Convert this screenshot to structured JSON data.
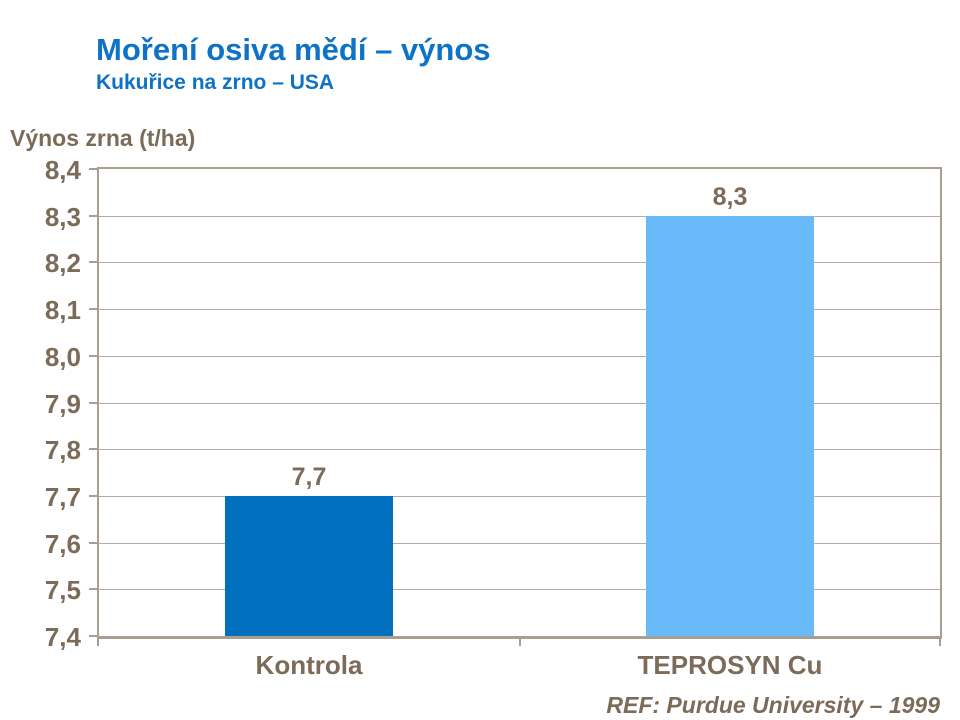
{
  "header": {
    "title": "Moření osiva mědí – výnos",
    "subtitle": "Kukuřice na zrno – USA"
  },
  "footer": {
    "reference": "REF: Purdue University – 1999"
  },
  "colors": {
    "title_blue": "#0e72c6",
    "text_brown": "#7c6b58",
    "axis_line": "#a89e92",
    "gridline": "#b5ab9f",
    "bar_kontrola": "#0070be",
    "bar_teprosyn": "#68bbf8"
  },
  "chart_data": {
    "type": "bar",
    "title": "Moření osiva mědí – výnos",
    "subtitle": "Kukuřice na zrno – USA",
    "xlabel": "",
    "ylabel": "Výnos zrna (t/ha)",
    "categories": [
      "Kontrola",
      "TEPROSYN Cu"
    ],
    "values": [
      7.7,
      8.3
    ],
    "value_labels": [
      "7,7",
      "8,3"
    ],
    "bar_colors": [
      "#0070be",
      "#68bbf8"
    ],
    "ylim": [
      7.4,
      8.4
    ],
    "ytick_step": 0.1,
    "ytick_labels": [
      "7,4",
      "7,5",
      "7,6",
      "7,7",
      "7,8",
      "7,9",
      "8,0",
      "8,1",
      "8,2",
      "8,3",
      "8,4"
    ],
    "decimal_separator": ",",
    "grid": true,
    "legend": false
  }
}
